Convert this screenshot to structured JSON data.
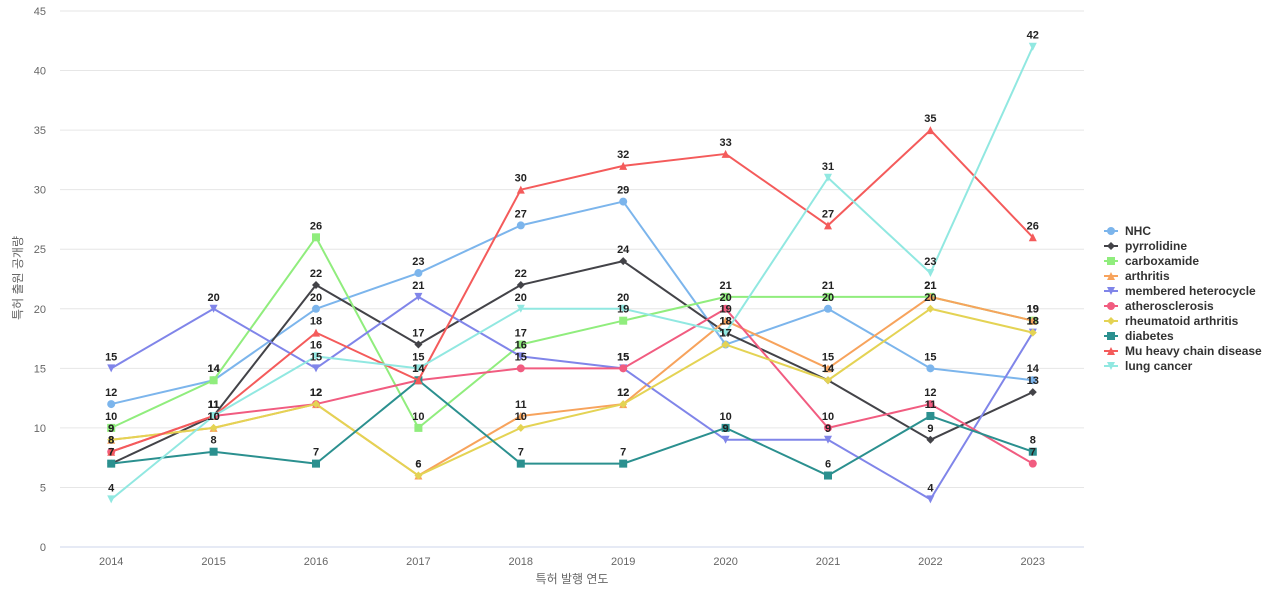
{
  "chart_data": {
    "type": "line",
    "title": "",
    "xlabel": "특허 발행 연도",
    "ylabel": "특허 출원 공개량",
    "x": [
      2014,
      2015,
      2016,
      2017,
      2018,
      2019,
      2020,
      2021,
      2022,
      2023
    ],
    "ylim": [
      0,
      45
    ],
    "yticks": [
      0,
      5,
      10,
      15,
      20,
      25,
      30,
      35,
      40,
      45
    ],
    "grid": true,
    "legend_position": "right",
    "series": [
      {
        "name": "NHC",
        "color": "#7cb5ec",
        "marker": "circle",
        "values": [
          12,
          14,
          20,
          23,
          27,
          29,
          17,
          20,
          15,
          14
        ]
      },
      {
        "name": "pyrrolidine",
        "color": "#434348",
        "marker": "diamond",
        "values": [
          7,
          11,
          22,
          17,
          22,
          24,
          18,
          14,
          9,
          13
        ]
      },
      {
        "name": "carboxamide",
        "color": "#90ed7d",
        "marker": "square",
        "values": [
          10,
          14,
          26,
          10,
          17,
          19,
          21,
          21,
          21,
          19
        ]
      },
      {
        "name": "arthritis",
        "color": "#f7a35c",
        "marker": "triangle",
        "values": [
          9,
          10,
          12,
          6,
          11,
          12,
          19,
          15,
          21,
          19
        ]
      },
      {
        "name": "membered heterocycle",
        "color": "#8085e9",
        "marker": "triangle-down",
        "values": [
          15,
          20,
          15,
          21,
          16,
          15,
          9,
          9,
          4,
          18
        ]
      },
      {
        "name": "atherosclerosis",
        "color": "#f15c80",
        "marker": "circle",
        "values": [
          8,
          11,
          12,
          14,
          15,
          15,
          20,
          10,
          12,
          7
        ]
      },
      {
        "name": "rheumatoid arthritis",
        "color": "#e4d354",
        "marker": "diamond",
        "values": [
          9,
          10,
          12,
          6,
          10,
          12,
          17,
          14,
          20,
          18
        ]
      },
      {
        "name": "diabetes",
        "color": "#2b908f",
        "marker": "square",
        "values": [
          7,
          8,
          7,
          14,
          7,
          7,
          10,
          6,
          11,
          8
        ]
      },
      {
        "name": "Mu heavy chain disease",
        "color": "#f45b5b",
        "marker": "triangle",
        "values": [
          8,
          11,
          18,
          14,
          30,
          32,
          33,
          27,
          35,
          26
        ]
      },
      {
        "name": "lung cancer",
        "color": "#91e8e1",
        "marker": "triangle-down",
        "values": [
          4,
          11,
          16,
          15,
          20,
          20,
          18,
          31,
          23,
          42
        ]
      }
    ]
  }
}
